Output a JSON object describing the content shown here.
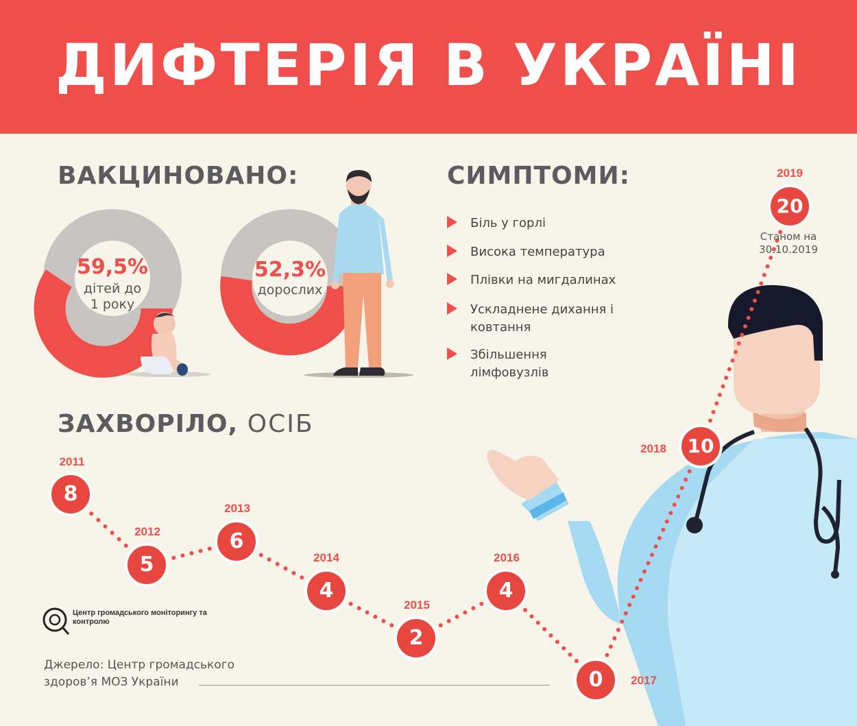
{
  "title": "ДИФТЕРІЯ В УКРАЇНІ",
  "vaccinated": {
    "heading": "ВАКЦИНОВАНО:",
    "children": {
      "percent": "59,5%",
      "value": 59.5,
      "label": "дітей до 1 року"
    },
    "adults": {
      "percent": "52,3%",
      "value": 52.3,
      "label": "дорослих"
    }
  },
  "symptoms": {
    "heading": "СИМПТОМИ:",
    "items": [
      "Біль у горлі",
      "Висока температура",
      "Плівки на мигдалинах",
      "Ускладнене дихання і ковтання",
      "Збільшення лімфовузлів"
    ]
  },
  "cases": {
    "heading_bold": "ЗАХВОРІЛО,",
    "heading_light": "ОСІБ",
    "points": [
      {
        "year": "2011",
        "value": "8"
      },
      {
        "year": "2012",
        "value": "5"
      },
      {
        "year": "2013",
        "value": "6"
      },
      {
        "year": "2014",
        "value": "4"
      },
      {
        "year": "2015",
        "value": "2"
      },
      {
        "year": "2016",
        "value": "4"
      },
      {
        "year": "2017",
        "value": "0"
      },
      {
        "year": "2018",
        "value": "10"
      },
      {
        "year": "2019",
        "value": "20"
      }
    ],
    "note_2019": "Станом на 30.10.2019"
  },
  "organization": "Центр громадського моніторингу та контролю",
  "source": "Джерело: Центр громадського здоров’я МОЗ України",
  "colors": {
    "accent": "#ef4e4a",
    "donut_gray": "#c8c4c1",
    "background": "#f7f4ea",
    "heading": "#5b5b60"
  }
}
